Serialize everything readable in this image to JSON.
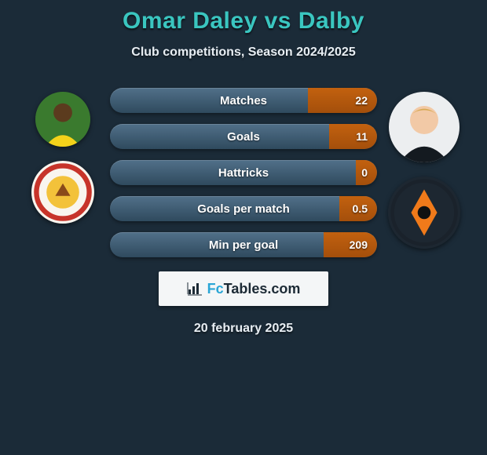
{
  "title": "Omar Daley vs Dalby",
  "subtitle": "Club competitions, Season 2024/2025",
  "date": "20 february 2025",
  "brand": {
    "prefix": "Fc",
    "suffix": "Tables.com"
  },
  "left": {
    "player_avatar": {
      "bg": "#3a7a2e",
      "shirt": "#f4d21a",
      "skin": "#5b3b1e"
    },
    "club_crest": {
      "bg": "#f9f5ee",
      "ring": "#c7342a",
      "center": "#f3c23a"
    }
  },
  "right": {
    "player_avatar": {
      "bg": "#eceef0",
      "shirt": "#141a20",
      "skin": "#f2c9a6",
      "hair": "#d6a851"
    },
    "club_crest": {
      "bg": "#1d2731",
      "ring": "#1a222b",
      "center": "#f07a1a"
    }
  },
  "stats": [
    {
      "label": "Matches",
      "right_value": "22",
      "right_fill_pct": 26
    },
    {
      "label": "Goals",
      "right_value": "11",
      "right_fill_pct": 18
    },
    {
      "label": "Hattricks",
      "right_value": "0",
      "right_fill_pct": 8
    },
    {
      "label": "Goals per match",
      "right_value": "0.5",
      "right_fill_pct": 14
    },
    {
      "label": "Min per goal",
      "right_value": "209",
      "right_fill_pct": 20
    }
  ],
  "colors": {
    "page_bg": "#1b2b38",
    "title": "#3ac6c0",
    "pill_grad_top": "#517089",
    "pill_grad_bottom": "#2f4a5e",
    "fill_grad_top": "#c2610f",
    "fill_grad_bottom": "#a44f0b",
    "brand_box_bg": "#f4f6f7"
  }
}
